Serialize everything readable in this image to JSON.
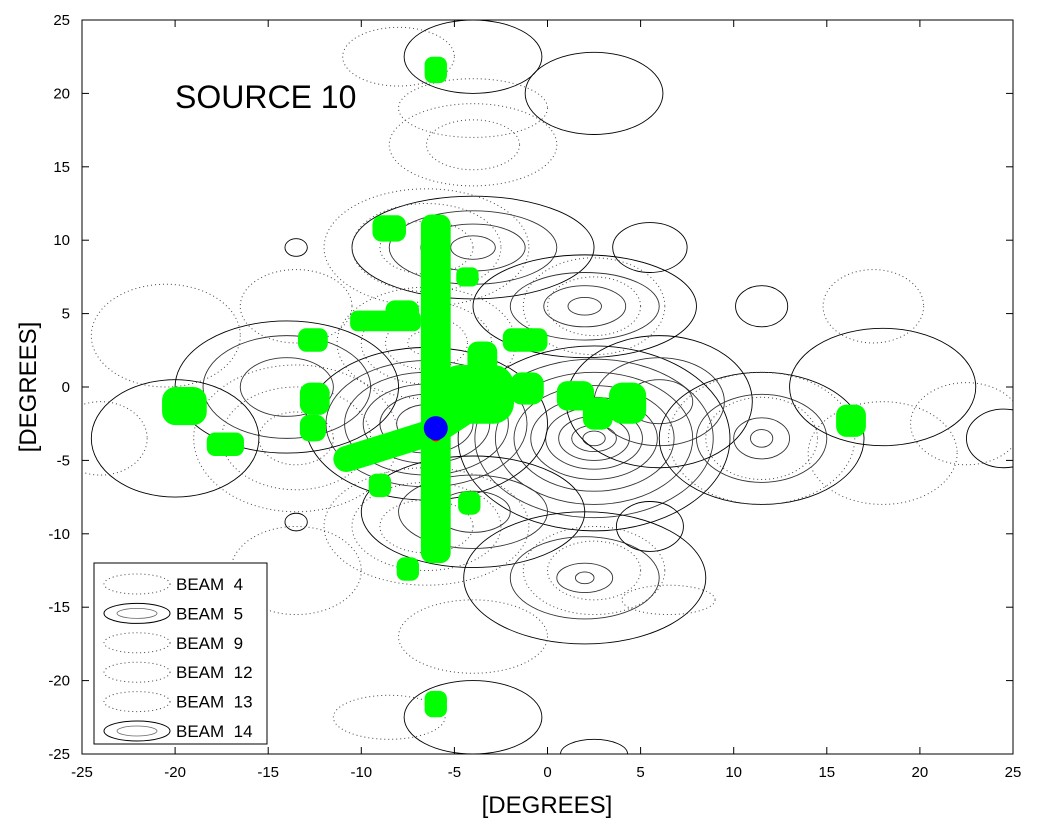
{
  "chart_data": {
    "type": "contour",
    "title": "SOURCE 10",
    "xlabel": "[DEGREES]",
    "ylabel": "[DEGREES]",
    "xlim": [
      -25,
      25
    ],
    "ylim": [
      -25,
      25
    ],
    "xticks": [
      -25,
      -20,
      -15,
      -10,
      -5,
      0,
      5,
      10,
      15,
      20,
      25
    ],
    "yticks": [
      -25,
      -20,
      -15,
      -10,
      -5,
      0,
      5,
      10,
      15,
      20,
      25
    ],
    "grid": false,
    "legend": {
      "position": "bottom-left",
      "entries": [
        {
          "name": "BEAM  4",
          "style": "dotted"
        },
        {
          "name": "BEAM  5",
          "style": "solid"
        },
        {
          "name": "BEAM  9",
          "style": "dotted"
        },
        {
          "name": "BEAM  12",
          "style": "dotted"
        },
        {
          "name": "BEAM  13",
          "style": "dotted"
        },
        {
          "name": "BEAM  14",
          "style": "solid"
        }
      ]
    },
    "contour_groups": [
      {
        "style": "solid",
        "cx": 2.5,
        "cy": -3.5,
        "levels": [
          [
            7.3,
            6.3
          ],
          [
            6.4,
            5.4
          ],
          [
            5.3,
            4.5
          ],
          [
            4.3,
            3.6
          ],
          [
            3.4,
            2.8
          ],
          [
            2.6,
            2.1
          ],
          [
            1.9,
            1.5
          ],
          [
            1.2,
            0.9
          ],
          [
            0.6,
            0.5
          ]
        ]
      },
      {
        "style": "solid",
        "cx": -6.5,
        "cy": -2.5,
        "levels": [
          [
            6.5,
            5.2
          ],
          [
            5.4,
            4.3
          ],
          [
            4.4,
            3.5
          ],
          [
            3.4,
            2.7
          ],
          [
            2.5,
            2.0
          ],
          [
            1.6,
            1.3
          ]
        ]
      },
      {
        "style": "solid",
        "cx": -4.0,
        "cy": 9.5,
        "levels": [
          [
            6.5,
            3.5
          ],
          [
            4.5,
            2.5
          ],
          [
            2.8,
            1.6
          ],
          [
            1.2,
            0.8
          ]
        ]
      },
      {
        "style": "solid",
        "cx": 2.0,
        "cy": 5.5,
        "levels": [
          [
            6.0,
            3.5
          ],
          [
            4.0,
            2.3
          ],
          [
            2.2,
            1.4
          ],
          [
            0.9,
            0.6
          ]
        ]
      },
      {
        "style": "solid",
        "cx": -4.0,
        "cy": -8.5,
        "levels": [
          [
            6.0,
            3.8
          ],
          [
            4.0,
            2.5
          ],
          [
            2.0,
            1.4
          ]
        ]
      },
      {
        "style": "solid",
        "cx": 2.0,
        "cy": -13.0,
        "levels": [
          [
            6.5,
            4.5
          ],
          [
            4.0,
            2.8
          ],
          [
            1.5,
            1.0
          ],
          [
            0.5,
            0.4
          ]
        ]
      },
      {
        "style": "solid",
        "cx": 6.0,
        "cy": -1.0,
        "levels": [
          [
            5.0,
            4.5
          ],
          [
            3.5,
            3.0
          ],
          [
            1.8,
            1.5
          ]
        ]
      },
      {
        "style": "solid",
        "cx": -14.0,
        "cy": 0.0,
        "levels": [
          [
            6.0,
            4.5
          ],
          [
            4.5,
            3.5
          ],
          [
            2.5,
            2.0
          ]
        ]
      },
      {
        "style": "solid",
        "cx": 11.5,
        "cy": -3.5,
        "levels": [
          [
            5.5,
            4.5
          ],
          [
            3.5,
            3.0
          ],
          [
            1.5,
            1.4
          ],
          [
            0.6,
            0.6
          ]
        ]
      },
      {
        "style": "solid",
        "cx": 18.0,
        "cy": 0.0,
        "levels": [
          [
            5.0,
            4.0
          ]
        ]
      },
      {
        "style": "solid",
        "cx": -20.0,
        "cy": -3.5,
        "levels": [
          [
            4.5,
            4.0
          ]
        ]
      },
      {
        "style": "solid",
        "cx": 2.5,
        "cy": 20.0,
        "levels": [
          [
            3.7,
            2.8
          ]
        ]
      },
      {
        "style": "solid",
        "cx": -4.0,
        "cy": 22.5,
        "levels": [
          [
            3.7,
            2.5
          ]
        ]
      },
      {
        "style": "solid",
        "cx": -4.0,
        "cy": -22.5,
        "levels": [
          [
            3.7,
            2.5
          ]
        ]
      },
      {
        "style": "solid",
        "cx": 2.5,
        "cy": -25.0,
        "levels": [
          [
            1.8,
            1.0
          ]
        ]
      },
      {
        "style": "solid",
        "cx": 5.5,
        "cy": 9.5,
        "levels": [
          [
            2.0,
            1.7
          ]
        ]
      },
      {
        "style": "solid",
        "cx": 11.5,
        "cy": 5.5,
        "levels": [
          [
            1.4,
            1.4
          ]
        ]
      },
      {
        "style": "solid",
        "cx": 5.5,
        "cy": -9.5,
        "levels": [
          [
            1.8,
            1.7
          ]
        ]
      },
      {
        "style": "solid",
        "cx": -13.5,
        "cy": 9.5,
        "levels": [
          [
            0.6,
            0.6
          ]
        ]
      },
      {
        "style": "solid",
        "cx": -13.5,
        "cy": -9.2,
        "levels": [
          [
            0.6,
            0.6
          ]
        ]
      },
      {
        "style": "solid",
        "cx": 24.5,
        "cy": -3.5,
        "levels": [
          [
            2.0,
            2.0
          ]
        ]
      },
      {
        "style": "dotted",
        "cx": -6.5,
        "cy": 3.0,
        "levels": [
          [
            4.8,
            3.8
          ],
          [
            3.5,
            2.8
          ],
          [
            2.2,
            1.8
          ],
          [
            1.0,
            0.8
          ]
        ]
      },
      {
        "style": "dotted",
        "cx": -6.5,
        "cy": 9.5,
        "levels": [
          [
            5.5,
            4.0
          ],
          [
            4.0,
            3.0
          ],
          [
            2.5,
            1.8
          ]
        ]
      },
      {
        "style": "dotted",
        "cx": -6.5,
        "cy": -9.5,
        "levels": [
          [
            5.5,
            4.0
          ],
          [
            4.0,
            3.0
          ],
          [
            2.5,
            1.8
          ]
        ]
      },
      {
        "style": "dotted",
        "cx": 2.5,
        "cy": 5.5,
        "levels": [
          [
            3.8,
            3.3
          ],
          [
            2.5,
            2.0
          ]
        ]
      },
      {
        "style": "dotted",
        "cx": 2.5,
        "cy": -12.5,
        "levels": [
          [
            3.8,
            3.0
          ],
          [
            2.5,
            2.0
          ]
        ]
      },
      {
        "style": "dotted",
        "cx": -13.5,
        "cy": -3.5,
        "levels": [
          [
            5.5,
            5.0
          ],
          [
            4.0,
            3.5
          ],
          [
            2.0,
            1.8
          ]
        ]
      },
      {
        "style": "dotted",
        "cx": 11.5,
        "cy": -3.5,
        "levels": [
          [
            5.0,
            4.5
          ],
          [
            3.0,
            2.8
          ]
        ]
      },
      {
        "style": "dotted",
        "cx": 18.0,
        "cy": -4.5,
        "levels": [
          [
            4.0,
            3.5
          ]
        ]
      },
      {
        "style": "dotted",
        "cx": 17.5,
        "cy": 5.5,
        "levels": [
          [
            2.7,
            2.5
          ]
        ]
      },
      {
        "style": "dotted",
        "cx": -20.5,
        "cy": 3.5,
        "levels": [
          [
            4.0,
            3.5
          ]
        ]
      },
      {
        "style": "dotted",
        "cx": -13.5,
        "cy": 5.5,
        "levels": [
          [
            3.0,
            2.5
          ]
        ]
      },
      {
        "style": "dotted",
        "cx": -13.5,
        "cy": -12.5,
        "levels": [
          [
            3.5,
            3.0
          ]
        ]
      },
      {
        "style": "dotted",
        "cx": -4.0,
        "cy": 16.5,
        "levels": [
          [
            4.5,
            2.8
          ],
          [
            2.5,
            1.7
          ]
        ]
      },
      {
        "style": "dotted",
        "cx": -4.0,
        "cy": 19.0,
        "levels": [
          [
            4.0,
            2.0
          ]
        ]
      },
      {
        "style": "dotted",
        "cx": -8.0,
        "cy": 22.5,
        "levels": [
          [
            3.0,
            2.0
          ]
        ]
      },
      {
        "style": "dotted",
        "cx": -4.0,
        "cy": -17.0,
        "levels": [
          [
            4.0,
            2.5
          ]
        ]
      },
      {
        "style": "dotted",
        "cx": -8.5,
        "cy": -22.5,
        "levels": [
          [
            3.0,
            1.5
          ]
        ]
      },
      {
        "style": "dotted",
        "cx": 6.5,
        "cy": -14.5,
        "levels": [
          [
            2.5,
            1.0
          ]
        ]
      },
      {
        "style": "dotted",
        "cx": 22.5,
        "cy": -2.5,
        "levels": [
          [
            3.0,
            2.8
          ]
        ]
      },
      {
        "style": "dotted",
        "cx": -24.0,
        "cy": -3.5,
        "levels": [
          [
            2.5,
            2.5
          ]
        ]
      }
    ],
    "green_shapes": [
      {
        "x": -6.0,
        "y": 1.5,
        "w": 1.6,
        "h": 20.5
      },
      {
        "x": -6.0,
        "y": -9.2,
        "w": 1.6,
        "h": 5.6
      },
      {
        "x": -8.7,
        "y": 4.5,
        "w": 3.8,
        "h": 1.4
      },
      {
        "x": -7.8,
        "y": 5.0,
        "w": 1.8,
        "h": 1.8
      },
      {
        "x": -8.5,
        "y": 10.8,
        "w": 1.8,
        "h": 1.8
      },
      {
        "x": -6.0,
        "y": 21.6,
        "w": 1.2,
        "h": 1.8
      },
      {
        "x": -4.3,
        "y": 7.5,
        "w": 1.2,
        "h": 1.3
      },
      {
        "x": -12.6,
        "y": 3.2,
        "w": 1.6,
        "h": 1.6
      },
      {
        "x": -12.5,
        "y": -0.8,
        "w": 1.6,
        "h": 2.2
      },
      {
        "x": -12.6,
        "y": -2.8,
        "w": 1.4,
        "h": 1.8
      },
      {
        "x": -19.5,
        "y": -1.3,
        "w": 2.4,
        "h": 2.6
      },
      {
        "x": -17.3,
        "y": -3.9,
        "w": 2.0,
        "h": 1.6
      },
      {
        "x": -9.0,
        "y": -6.7,
        "w": 1.2,
        "h": 1.6
      },
      {
        "x": -4.2,
        "y": -7.9,
        "w": 1.2,
        "h": 1.6
      },
      {
        "x": -7.5,
        "y": -12.4,
        "w": 1.2,
        "h": 1.6
      },
      {
        "x": -6.0,
        "y": -21.6,
        "w": 1.2,
        "h": 1.8
      },
      {
        "x": -1.2,
        "y": 3.2,
        "w": 2.4,
        "h": 1.6
      },
      {
        "x": -1.1,
        "y": -0.1,
        "w": 1.8,
        "h": 2.2
      },
      {
        "x": 1.5,
        "y": -0.6,
        "w": 2.0,
        "h": 2.0
      },
      {
        "x": 2.7,
        "y": -1.8,
        "w": 1.6,
        "h": 2.2
      },
      {
        "x": 4.3,
        "y": -1.1,
        "w": 2.0,
        "h": 2.8
      },
      {
        "x": 16.3,
        "y": -2.3,
        "w": 1.6,
        "h": 2.2
      },
      {
        "x": -3.8,
        "y": -0.5,
        "w": 4.0,
        "h": 4.0
      },
      {
        "x": -3.5,
        "y": 2.0,
        "w": 1.6,
        "h": 2.2
      },
      {
        "x": -3.0,
        "y": 0.2,
        "w": 1.6,
        "h": 2.0
      }
    ],
    "green_band": {
      "points": [
        [
          -10.8,
          -4.9
        ],
        [
          -8.5,
          -4.0
        ],
        [
          -6.0,
          -3.0
        ],
        [
          -4.2,
          -1.5
        ],
        [
          -3.0,
          0.0
        ]
      ],
      "width": 1.4
    },
    "marker_blue": {
      "x": -6.0,
      "y": -2.8
    },
    "marker_red": {
      "x": -6.0,
      "y": -3.3
    }
  }
}
